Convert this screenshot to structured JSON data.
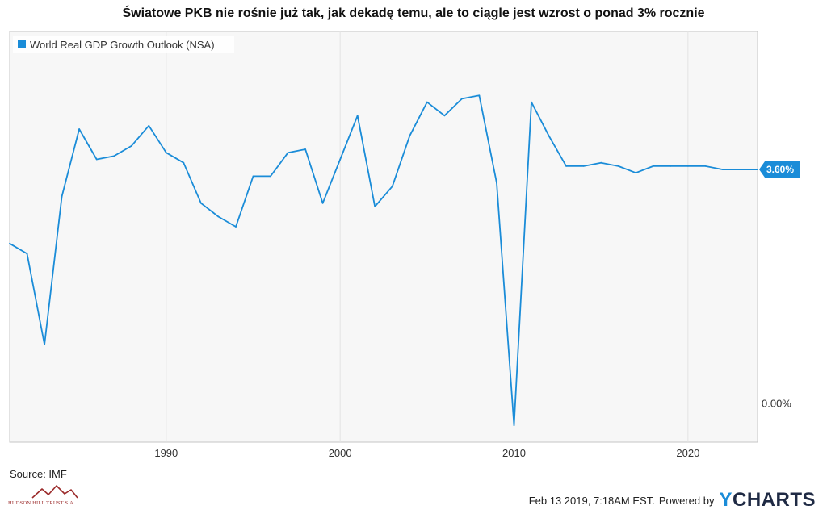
{
  "title": "Światowe PKB nie rośnie już tak, jak dekadę temu, ale to ciągle jest wzrost o ponad 3% rocznie",
  "source": "Source: IMF",
  "logo_text": "HUDSON HILL TRUST S.A.",
  "footer": {
    "timestamp": "Feb 13 2019, 7:18AM EST.",
    "powered_by": "Powered by",
    "brand_y": "Y",
    "brand_rest": "CHARTS"
  },
  "colors": {
    "series": "#1a8cd8",
    "callout": "#1a8cd8",
    "brand": "#1f2a44",
    "logo": "#9b2a2a"
  },
  "chart_data": {
    "type": "line",
    "title": "Światowe PKB nie rośnie już tak, jak dekadę temu, ale to ciągle jest wzrost o ponad 3% rocznie",
    "xlabel": "",
    "ylabel": "",
    "x_ticks": [
      "1990",
      "2000",
      "2010",
      "2020"
    ],
    "y_ticks": [
      "0.00%"
    ],
    "legend": {
      "position": "top-left",
      "entries": [
        "World Real GDP Growth Outlook (NSA)"
      ]
    },
    "grid": true,
    "xlim": [
      1981,
      2024
    ],
    "ylim": [
      -0.45,
      5.65
    ],
    "last_value_label": "3.60%",
    "series": [
      {
        "name": "World Real GDP Growth Outlook (NSA)",
        "color": "#1a8cd8",
        "x": [
          1981,
          1982,
          1983,
          1984,
          1985,
          1986,
          1987,
          1988,
          1989,
          1990,
          1991,
          1992,
          1993,
          1994,
          1995,
          1996,
          1997,
          1998,
          1999,
          2000,
          2001,
          2002,
          2003,
          2004,
          2005,
          2006,
          2007,
          2008,
          2009,
          2010,
          2011,
          2012,
          2013,
          2014,
          2015,
          2016,
          2017,
          2018,
          2019,
          2020,
          2021,
          2022,
          2023,
          2024
        ],
        "values": [
          2.5,
          2.35,
          1.0,
          3.2,
          4.2,
          3.75,
          3.8,
          3.95,
          4.25,
          3.85,
          3.7,
          3.1,
          2.9,
          2.75,
          3.5,
          3.5,
          3.85,
          3.9,
          3.1,
          3.75,
          4.4,
          3.05,
          3.35,
          4.1,
          4.6,
          4.4,
          4.65,
          4.7,
          3.4,
          -0.2,
          4.6,
          4.1,
          3.65,
          3.65,
          3.7,
          3.65,
          3.55,
          3.65,
          3.65,
          3.65,
          3.65,
          3.6,
          3.6,
          3.6
        ]
      }
    ]
  }
}
